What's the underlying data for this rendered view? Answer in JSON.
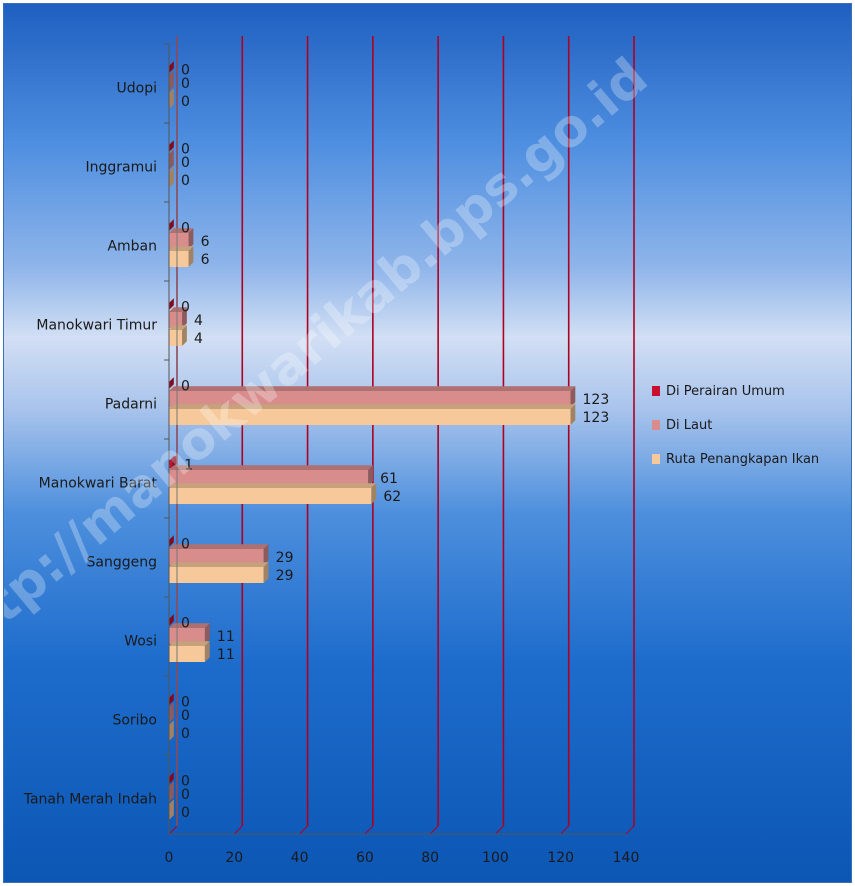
{
  "watermark": "http://manokwarikab.bps.go.id",
  "chart_data": {
    "type": "bar",
    "orientation": "horizontal",
    "categories": [
      "Udopi",
      "Inggramui",
      "Amban",
      "Manokwari Timur",
      "Padarni",
      "Manokwari Barat",
      "Sanggeng",
      "Wosi",
      "Soribo",
      "Tanah Merah Indah"
    ],
    "series": [
      {
        "name": "Di Perairan Umum",
        "color": "#c8102e",
        "values": [
          0,
          0,
          0,
          0,
          0,
          1,
          0,
          0,
          0,
          0
        ],
        "labels": [
          "0",
          "0",
          "0",
          "0",
          "0",
          "1",
          "0",
          "0",
          "0",
          "0"
        ]
      },
      {
        "name": "Di Laut",
        "color": "#d98c8c",
        "values": [
          0,
          0,
          6,
          4,
          123,
          61,
          29,
          11,
          0,
          0
        ],
        "labels": [
          "0",
          "0",
          "6",
          "4",
          "123",
          "61",
          "29",
          "11",
          "0",
          "0"
        ]
      },
      {
        "name": "Ruta Penangkapan Ikan",
        "color": "#f7c99a",
        "values": [
          0,
          0,
          6,
          4,
          123,
          62,
          29,
          11,
          0,
          0
        ],
        "labels": [
          "0",
          "0",
          "6",
          "4",
          "123",
          "62",
          "29",
          "11",
          "0",
          "0"
        ]
      }
    ],
    "xlim": [
      0,
      140
    ],
    "xticks": [
      0,
      20,
      40,
      60,
      80,
      100,
      120,
      140
    ],
    "xtick_labels": [
      "0",
      "20",
      "40",
      "60",
      "80",
      "100",
      "120",
      "140"
    ],
    "title": "",
    "xlabel": "",
    "ylabel": "",
    "grid": "vertical",
    "grid_color": "#b00020",
    "legend_position": "right"
  }
}
